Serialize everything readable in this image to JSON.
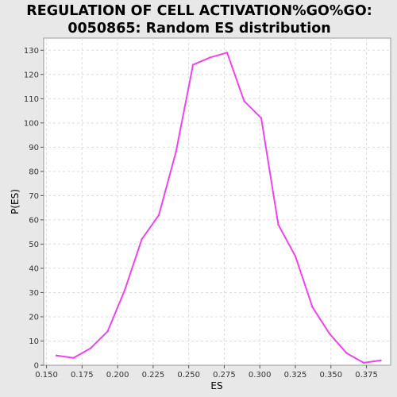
{
  "chart_data": {
    "type": "line",
    "title_lines": [
      "REGULATION OF CELL ACTIVATION%GO%GO:",
      "0050865: Random ES distribution"
    ],
    "xlabel": "ES",
    "ylabel": "P(ES)",
    "xlim": [
      0.148,
      0.392
    ],
    "ylim": [
      0,
      135
    ],
    "xticks": [
      "0.150",
      "0.175",
      "0.200",
      "0.225",
      "0.250",
      "0.275",
      "0.300",
      "0.325",
      "0.350",
      "0.375"
    ],
    "yticks": [
      "0",
      "10",
      "20",
      "30",
      "40",
      "50",
      "60",
      "70",
      "80",
      "90",
      "100",
      "110",
      "120",
      "130"
    ],
    "grid": true,
    "series": [
      {
        "color": "#ee44ee",
        "x": [
          0.157,
          0.169,
          0.181,
          0.193,
          0.205,
          0.217,
          0.229,
          0.241,
          0.253,
          0.265,
          0.277,
          0.289,
          0.301,
          0.313,
          0.325,
          0.337,
          0.349,
          0.361,
          0.373,
          0.385
        ],
        "y": [
          4,
          3,
          7,
          14,
          31,
          52,
          62,
          88,
          124,
          127,
          129,
          109,
          102,
          58,
          45,
          24,
          13,
          5,
          1,
          2
        ]
      }
    ]
  }
}
